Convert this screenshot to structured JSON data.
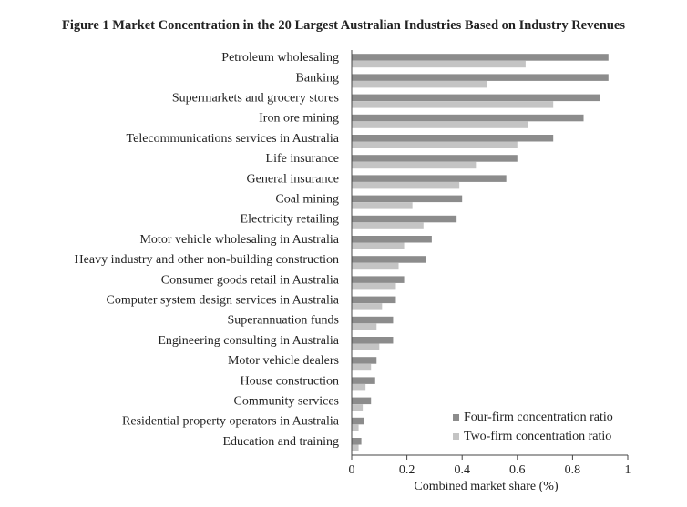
{
  "chart_data": {
    "type": "bar",
    "orientation": "horizontal",
    "title": "Figure 1  Market Concentration in the 20 Largest Australian Industries Based on Industry Revenues",
    "xlabel": "Combined market share (%)",
    "ylabel": "",
    "xlim": [
      0,
      1
    ],
    "xticks": [
      0,
      0.2,
      0.4,
      0.6,
      0.8,
      1
    ],
    "xtick_labels": [
      "0",
      "0.2",
      "0.4",
      "0.6",
      "0.8",
      "1"
    ],
    "grid": false,
    "legend_position": "bottom-right",
    "categories": [
      "Petroleum wholesaling",
      "Banking",
      "Supermarkets and grocery stores",
      "Iron ore mining",
      "Telecommunications services in Australia",
      "Life insurance",
      "General insurance",
      "Coal mining",
      "Electricity retailing",
      "Motor vehicle wholesaling in Australia",
      "Heavy industry and other non-building construction",
      "Consumer goods retail in Australia",
      "Computer system design services in Australia",
      "Superannuation funds",
      "Engineering consulting in Australia",
      "Motor vehicle dealers",
      "House construction",
      "Community services",
      "Residential property operators in Australia",
      "Education and training"
    ],
    "series": [
      {
        "name": "Four-firm concentration ratio",
        "color": "#8c8c8c",
        "values": [
          0.93,
          0.93,
          0.9,
          0.84,
          0.73,
          0.6,
          0.56,
          0.4,
          0.38,
          0.29,
          0.27,
          0.19,
          0.16,
          0.15,
          0.15,
          0.09,
          0.085,
          0.07,
          0.045,
          0.035
        ]
      },
      {
        "name": "Two-firm concentration ratio",
        "color": "#c4c4c4",
        "values": [
          0.63,
          0.49,
          0.73,
          0.64,
          0.6,
          0.45,
          0.39,
          0.22,
          0.26,
          0.19,
          0.17,
          0.16,
          0.11,
          0.09,
          0.1,
          0.07,
          0.05,
          0.04,
          0.025,
          0.025
        ]
      }
    ]
  }
}
